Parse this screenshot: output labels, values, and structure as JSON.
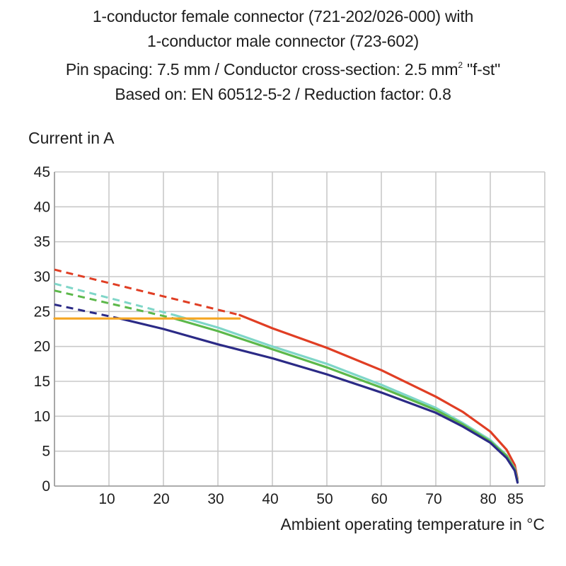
{
  "chart_data": {
    "type": "line",
    "title_lines": [
      "1-conductor female connector (721-202/026-000) with",
      "1-conductor male connector (723-602)"
    ],
    "subtitle_lines": {
      "spacing": "Pin spacing: 7.5 mm / Conductor cross-section: 2.5 mm",
      "sup": "2",
      "suffix": " \"f-st\"",
      "standard": "Based on: EN 60512-5-2 / Reduction factor: 0.8"
    },
    "ylabel": "Current in A",
    "xlabel": "Ambient operating temperature in °C",
    "xlim": [
      0,
      90
    ],
    "ylim": [
      0,
      45
    ],
    "x_ticks": [
      10,
      20,
      30,
      40,
      50,
      60,
      70,
      80,
      85
    ],
    "y_ticks": [
      0,
      5,
      10,
      15,
      20,
      25,
      30,
      35,
      40,
      45
    ],
    "grid": true,
    "series": [
      {
        "color": "#e03e24",
        "dashed": [
          [
            0,
            31
          ],
          [
            34,
            24.5
          ]
        ],
        "solid": [
          [
            34,
            24.5
          ],
          [
            40,
            22.6
          ],
          [
            50,
            19.8
          ],
          [
            60,
            16.6
          ],
          [
            70,
            12.8
          ],
          [
            75,
            10.6
          ],
          [
            80,
            7.8
          ],
          [
            83,
            5.2
          ],
          [
            84.5,
            3.0
          ],
          [
            85,
            1.0
          ]
        ]
      },
      {
        "color": "#7fd6c8",
        "dashed": [
          [
            0,
            29
          ],
          [
            22,
            24.5
          ]
        ],
        "solid": [
          [
            22,
            24.5
          ],
          [
            30,
            22.7
          ],
          [
            40,
            20.0
          ],
          [
            50,
            17.5
          ],
          [
            60,
            14.5
          ],
          [
            70,
            11.2
          ],
          [
            75,
            9.0
          ],
          [
            80,
            6.6
          ],
          [
            83,
            4.4
          ],
          [
            84.5,
            2.5
          ],
          [
            85,
            0.8
          ]
        ]
      },
      {
        "color": "#5cb84a",
        "dashed": [
          [
            0,
            28
          ],
          [
            22,
            24.0
          ]
        ],
        "solid": [
          [
            22,
            24.0
          ],
          [
            30,
            22.2
          ],
          [
            40,
            19.6
          ],
          [
            50,
            17.0
          ],
          [
            60,
            14.1
          ],
          [
            70,
            10.9
          ],
          [
            75,
            8.8
          ],
          [
            80,
            6.4
          ],
          [
            83,
            4.3
          ],
          [
            84.5,
            2.4
          ],
          [
            85,
            0.6
          ]
        ]
      },
      {
        "color": "#2b2a86",
        "dashed": [
          [
            0,
            26
          ],
          [
            12,
            24.0
          ]
        ],
        "solid": [
          [
            12,
            24.0
          ],
          [
            20,
            22.5
          ],
          [
            30,
            20.3
          ],
          [
            40,
            18.3
          ],
          [
            50,
            16.0
          ],
          [
            60,
            13.4
          ],
          [
            70,
            10.5
          ],
          [
            75,
            8.5
          ],
          [
            80,
            6.2
          ],
          [
            83,
            4.0
          ],
          [
            84.5,
            2.2
          ],
          [
            85,
            0.5
          ]
        ]
      },
      {
        "color": "#f5a623",
        "dashed": [],
        "solid": [
          [
            0,
            24
          ],
          [
            34,
            24
          ]
        ]
      }
    ]
  }
}
